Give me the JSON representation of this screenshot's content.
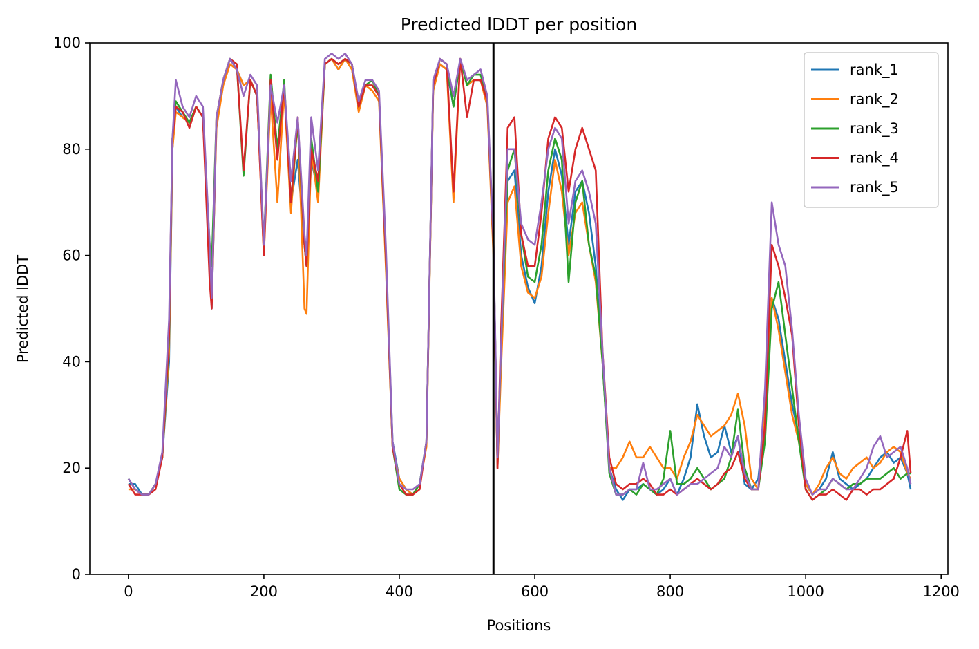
{
  "chart_data": {
    "type": "line",
    "title": "Predicted lDDT per position",
    "xlabel": "Positions",
    "ylabel": "Predicted lDDT",
    "xlim": [
      -57,
      1210
    ],
    "ylim": [
      0,
      100
    ],
    "xticks": [
      0,
      200,
      400,
      600,
      800,
      1000,
      1200
    ],
    "yticks": [
      0,
      20,
      40,
      60,
      80,
      100
    ],
    "grid": false,
    "legend_position": "top-right",
    "divider_x": 539,
    "series": [
      {
        "name": "rank_1",
        "color": "#1f77b4",
        "x": [
          0,
          10,
          20,
          30,
          40,
          50,
          60,
          65,
          70,
          80,
          90,
          100,
          110,
          120,
          123,
          130,
          140,
          150,
          160,
          170,
          180,
          190,
          200,
          210,
          220,
          230,
          240,
          250,
          260,
          263,
          270,
          280,
          290,
          300,
          310,
          320,
          330,
          340,
          350,
          360,
          370,
          380,
          390,
          400,
          410,
          420,
          430,
          440,
          450,
          460,
          470,
          480,
          490,
          500,
          510,
          520,
          530,
          539,
          545,
          550,
          560,
          570,
          580,
          590,
          600,
          610,
          620,
          630,
          640,
          650,
          660,
          670,
          680,
          690,
          700,
          710,
          720,
          730,
          740,
          750,
          760,
          770,
          780,
          790,
          800,
          810,
          820,
          830,
          840,
          850,
          860,
          870,
          880,
          890,
          900,
          910,
          920,
          930,
          940,
          950,
          960,
          970,
          980,
          990,
          1000,
          1010,
          1020,
          1030,
          1040,
          1050,
          1060,
          1070,
          1080,
          1090,
          1100,
          1110,
          1120,
          1130,
          1140,
          1150,
          1155
        ],
        "y": [
          17,
          17,
          15,
          15,
          17,
          22,
          40,
          80,
          88,
          86,
          85,
          88,
          86,
          60,
          50,
          85,
          93,
          97,
          95,
          92,
          93,
          90,
          62,
          92,
          80,
          92,
          70,
          78,
          62,
          58,
          78,
          72,
          96,
          97,
          95,
          97,
          95,
          88,
          92,
          92,
          90,
          60,
          25,
          18,
          16,
          15,
          17,
          25,
          92,
          96,
          95,
          88,
          97,
          92,
          93,
          93,
          89,
          62,
          20,
          40,
          74,
          76,
          60,
          54,
          51,
          58,
          72,
          80,
          75,
          62,
          72,
          74,
          68,
          58,
          40,
          20,
          16,
          14,
          16,
          16,
          17,
          16,
          15,
          16,
          18,
          15,
          18,
          22,
          32,
          26,
          22,
          23,
          28,
          23,
          26,
          17,
          16,
          18,
          30,
          52,
          48,
          40,
          32,
          26,
          17,
          15,
          16,
          18,
          23,
          18,
          17,
          16,
          17,
          18,
          20,
          22,
          23,
          21,
          22,
          19,
          16
        ]
      },
      {
        "name": "rank_2",
        "color": "#ff7f0e",
        "x": [
          0,
          10,
          20,
          30,
          40,
          50,
          60,
          65,
          70,
          80,
          90,
          100,
          110,
          120,
          123,
          130,
          140,
          150,
          160,
          170,
          180,
          190,
          200,
          210,
          220,
          230,
          240,
          250,
          260,
          263,
          270,
          280,
          290,
          300,
          310,
          320,
          330,
          340,
          350,
          360,
          370,
          380,
          390,
          400,
          410,
          420,
          430,
          440,
          450,
          460,
          470,
          480,
          490,
          500,
          510,
          520,
          530,
          539,
          545,
          550,
          560,
          570,
          580,
          590,
          600,
          610,
          620,
          630,
          640,
          650,
          660,
          670,
          680,
          690,
          700,
          710,
          720,
          730,
          740,
          750,
          760,
          770,
          780,
          790,
          800,
          810,
          820,
          830,
          840,
          850,
          860,
          870,
          880,
          890,
          900,
          910,
          920,
          930,
          940,
          950,
          960,
          970,
          980,
          990,
          1000,
          1010,
          1020,
          1030,
          1040,
          1050,
          1060,
          1070,
          1080,
          1090,
          1100,
          1110,
          1120,
          1130,
          1140,
          1150,
          1155
        ],
        "y": [
          16,
          16,
          15,
          15,
          17,
          22,
          42,
          80,
          87,
          86,
          85,
          88,
          86,
          60,
          52,
          84,
          92,
          96,
          95,
          92,
          93,
          90,
          60,
          90,
          70,
          91,
          68,
          86,
          50,
          49,
          80,
          70,
          96,
          97,
          95,
          97,
          95,
          87,
          92,
          91,
          89,
          58,
          24,
          18,
          16,
          15,
          17,
          24,
          91,
          96,
          95,
          70,
          97,
          92,
          93,
          93,
          88,
          60,
          20,
          38,
          70,
          73,
          58,
          53,
          52,
          56,
          68,
          78,
          72,
          60,
          68,
          70,
          62,
          55,
          40,
          20,
          20,
          22,
          25,
          22,
          22,
          24,
          22,
          20,
          20,
          18,
          22,
          25,
          30,
          28,
          26,
          27,
          28,
          30,
          34,
          28,
          18,
          16,
          30,
          52,
          46,
          38,
          30,
          25,
          17,
          15,
          17,
          20,
          22,
          19,
          18,
          20,
          21,
          22,
          20,
          21,
          23,
          24,
          23,
          19,
          18
        ]
      },
      {
        "name": "rank_3",
        "color": "#2ca02c",
        "x": [
          0,
          10,
          20,
          30,
          40,
          50,
          60,
          65,
          70,
          80,
          90,
          100,
          110,
          120,
          123,
          130,
          140,
          150,
          160,
          170,
          180,
          190,
          200,
          210,
          220,
          230,
          240,
          250,
          260,
          263,
          270,
          280,
          290,
          300,
          310,
          320,
          330,
          340,
          350,
          360,
          370,
          380,
          390,
          400,
          410,
          420,
          430,
          440,
          450,
          460,
          470,
          480,
          490,
          500,
          510,
          520,
          530,
          539,
          545,
          550,
          560,
          570,
          580,
          590,
          600,
          610,
          620,
          630,
          640,
          650,
          660,
          670,
          680,
          690,
          700,
          710,
          720,
          730,
          740,
          750,
          760,
          770,
          780,
          790,
          800,
          810,
          820,
          830,
          840,
          850,
          860,
          870,
          880,
          890,
          900,
          910,
          920,
          930,
          940,
          950,
          960,
          970,
          980,
          990,
          1000,
          1010,
          1020,
          1030,
          1040,
          1050,
          1060,
          1070,
          1080,
          1090,
          1100,
          1110,
          1120,
          1130,
          1140,
          1150,
          1155
        ],
        "y": [
          18,
          16,
          15,
          15,
          17,
          22,
          44,
          82,
          89,
          87,
          85,
          88,
          86,
          62,
          58,
          86,
          93,
          97,
          96,
          75,
          93,
          90,
          62,
          94,
          80,
          93,
          70,
          85,
          62,
          58,
          82,
          72,
          96,
          97,
          96,
          97,
          96,
          88,
          92,
          93,
          90,
          60,
          24,
          16,
          15,
          15,
          17,
          25,
          92,
          97,
          96,
          88,
          97,
          92,
          94,
          94,
          89,
          62,
          21,
          42,
          76,
          80,
          64,
          56,
          55,
          62,
          76,
          82,
          78,
          55,
          70,
          74,
          62,
          56,
          40,
          19,
          15,
          15,
          16,
          15,
          17,
          16,
          15,
          18,
          27,
          17,
          17,
          18,
          20,
          18,
          16,
          17,
          18,
          22,
          31,
          20,
          16,
          16,
          25,
          50,
          55,
          45,
          35,
          25,
          16,
          14,
          15,
          16,
          18,
          17,
          16,
          17,
          17,
          18,
          18,
          18,
          19,
          20,
          18,
          19,
          19
        ]
      },
      {
        "name": "rank_4",
        "color": "#d62728",
        "x": [
          0,
          10,
          20,
          30,
          40,
          50,
          60,
          65,
          70,
          80,
          90,
          100,
          110,
          120,
          123,
          130,
          140,
          150,
          160,
          170,
          180,
          190,
          200,
          210,
          220,
          230,
          240,
          250,
          260,
          263,
          270,
          280,
          290,
          300,
          310,
          320,
          330,
          340,
          350,
          360,
          370,
          380,
          390,
          400,
          410,
          420,
          430,
          440,
          450,
          460,
          470,
          480,
          490,
          500,
          510,
          520,
          530,
          539,
          545,
          550,
          560,
          570,
          580,
          590,
          600,
          610,
          620,
          630,
          640,
          650,
          660,
          670,
          680,
          690,
          700,
          710,
          720,
          730,
          740,
          750,
          760,
          770,
          780,
          790,
          800,
          810,
          820,
          830,
          840,
          850,
          860,
          870,
          880,
          890,
          900,
          910,
          920,
          930,
          940,
          950,
          960,
          970,
          980,
          990,
          1000,
          1010,
          1020,
          1030,
          1040,
          1050,
          1060,
          1070,
          1080,
          1090,
          1100,
          1110,
          1120,
          1130,
          1140,
          1150,
          1155
        ],
        "y": [
          17,
          15,
          15,
          15,
          16,
          22,
          45,
          82,
          88,
          87,
          84,
          88,
          86,
          55,
          50,
          86,
          93,
          97,
          96,
          76,
          93,
          90,
          60,
          93,
          78,
          92,
          70,
          86,
          62,
          58,
          80,
          74,
          96,
          97,
          96,
          97,
          96,
          88,
          92,
          92,
          90,
          60,
          24,
          17,
          15,
          15,
          16,
          25,
          92,
          97,
          96,
          72,
          97,
          86,
          93,
          93,
          89,
          62,
          20,
          45,
          84,
          86,
          64,
          58,
          58,
          68,
          82,
          86,
          84,
          72,
          80,
          84,
          80,
          76,
          42,
          22,
          17,
          16,
          17,
          17,
          18,
          17,
          15,
          15,
          16,
          15,
          16,
          17,
          18,
          17,
          16,
          17,
          19,
          20,
          23,
          18,
          16,
          16,
          28,
          62,
          58,
          52,
          45,
          28,
          16,
          14,
          15,
          15,
          16,
          15,
          14,
          16,
          16,
          15,
          16,
          16,
          17,
          18,
          22,
          27,
          19
        ]
      },
      {
        "name": "rank_5",
        "color": "#9467bd",
        "x": [
          0,
          10,
          20,
          30,
          40,
          50,
          60,
          65,
          70,
          80,
          90,
          100,
          110,
          120,
          123,
          130,
          140,
          150,
          160,
          170,
          180,
          190,
          200,
          210,
          220,
          230,
          240,
          250,
          260,
          263,
          270,
          280,
          290,
          300,
          310,
          320,
          330,
          340,
          350,
          360,
          370,
          380,
          390,
          400,
          410,
          420,
          430,
          440,
          450,
          460,
          470,
          480,
          490,
          500,
          510,
          520,
          530,
          539,
          545,
          550,
          560,
          570,
          580,
          590,
          600,
          610,
          620,
          630,
          640,
          650,
          660,
          670,
          680,
          690,
          700,
          710,
          720,
          730,
          740,
          750,
          760,
          770,
          780,
          790,
          800,
          810,
          820,
          830,
          840,
          850,
          860,
          870,
          880,
          890,
          900,
          910,
          920,
          930,
          940,
          950,
          960,
          970,
          980,
          990,
          1000,
          1010,
          1020,
          1030,
          1040,
          1050,
          1060,
          1070,
          1080,
          1090,
          1100,
          1110,
          1120,
          1130,
          1140,
          1150,
          1155
        ],
        "y": [
          18,
          16,
          15,
          15,
          17,
          23,
          48,
          82,
          93,
          88,
          86,
          90,
          88,
          62,
          52,
          86,
          93,
          97,
          95,
          90,
          94,
          92,
          62,
          92,
          85,
          92,
          74,
          86,
          64,
          60,
          86,
          76,
          97,
          98,
          97,
          98,
          96,
          89,
          93,
          93,
          91,
          62,
          25,
          17,
          16,
          16,
          17,
          25,
          93,
          97,
          96,
          90,
          97,
          93,
          94,
          95,
          90,
          63,
          22,
          42,
          80,
          80,
          66,
          63,
          62,
          70,
          80,
          84,
          82,
          66,
          74,
          76,
          72,
          66,
          42,
          20,
          15,
          15,
          16,
          16,
          21,
          16,
          16,
          17,
          18,
          15,
          16,
          17,
          17,
          18,
          19,
          20,
          24,
          22,
          26,
          19,
          16,
          16,
          35,
          70,
          62,
          58,
          46,
          30,
          18,
          15,
          16,
          16,
          18,
          17,
          16,
          16,
          18,
          20,
          24,
          26,
          22,
          23,
          24,
          20,
          17
        ]
      }
    ]
  }
}
